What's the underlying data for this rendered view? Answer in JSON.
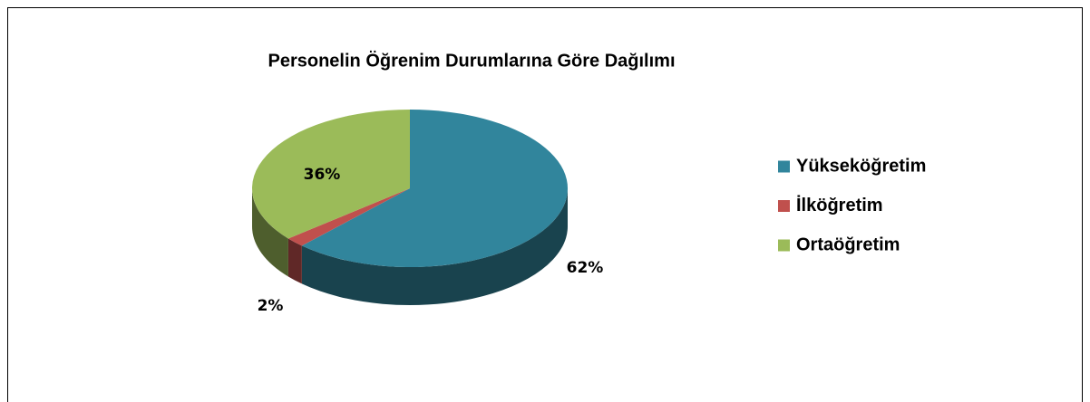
{
  "chart_data": {
    "type": "pie3d",
    "title": "Personelin Öğrenim Durumlarına Göre Dağılımı",
    "categories": [
      "Yükseköğretim",
      "İlköğretim",
      "Ortaöğretim"
    ],
    "values": [
      62,
      2,
      36
    ],
    "value_labels": [
      "62%",
      "2%",
      "36%"
    ],
    "colors": [
      "#31859c",
      "#c0504d",
      "#9bbb59"
    ],
    "legend": "right"
  }
}
